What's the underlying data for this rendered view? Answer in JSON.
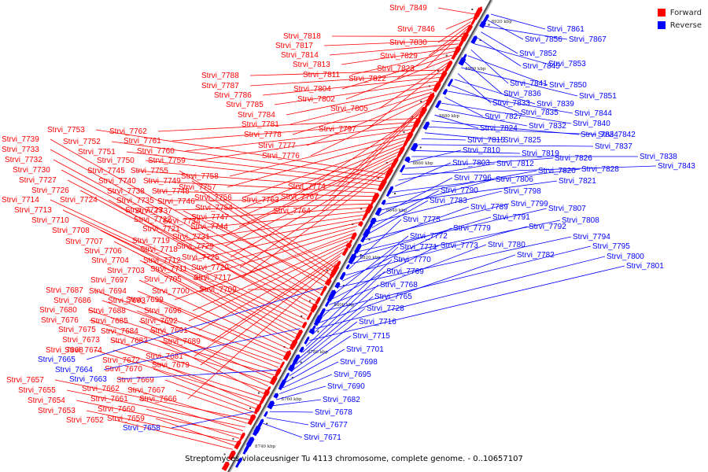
{
  "legend": {
    "forward_label": "Forward",
    "reverse_label": "Reverse",
    "forward_color": "#ff0000",
    "reverse_color": "#0000ff"
  },
  "caption": "Streptomyces violaceusniger Tu 4113 chromosome, complete genome. - 0..10657107",
  "axis_ticks": [
    "8920 kbp",
    "8900 kbp",
    "8880 kbp",
    "8860 kbp",
    "8840 kbp",
    "8820 kbp",
    "8800 kbp",
    "8780 kbp",
    "8760 kbp",
    "8740 kbp"
  ],
  "forward_genes": [
    "Strvi_7849",
    "Strvi_7846",
    "Strvi_7830",
    "Strvi_7829",
    "Strvi_7823",
    "Strvi_7822",
    "Strvi_7818",
    "Strvi_7817",
    "Strvi_7814",
    "Strvi_7813",
    "Strvi_7811",
    "Strvi_7804",
    "Strvi_7802",
    "Strvi_7805",
    "Strvi_7797",
    "Strvi_7788",
    "Strvi_7787",
    "Strvi_7786",
    "Strvi_7785",
    "Strvi_7784",
    "Strvi_7781",
    "Strvi_7778",
    "Strvi_7777",
    "Strvi_7776",
    "Strvi_7774",
    "Strvi_7767",
    "Strvi_7764",
    "Strvi_7763",
    "Strvi_7762",
    "Strvi_7761",
    "Strvi_7760",
    "Strvi_7759",
    "Strvi_7758",
    "Strvi_7757",
    "Strvi_7756",
    "Strvi_7754",
    "Strvi_7747",
    "Strvi_7744",
    "Strvi_7731",
    "Strvi_7729",
    "Strvi_7725",
    "Strvi_7720",
    "Strvi_7717",
    "Strvi_7753",
    "Strvi_7752",
    "Strvi_7751",
    "Strvi_7750",
    "Strvi_7745",
    "Strvi_7740",
    "Strvi_7738",
    "Strvi_7735",
    "Strvi_7723",
    "Strvi_7722",
    "Strvi_7721",
    "Strvi_7719",
    "Strvi_7718",
    "Strvi_7712",
    "Strvi_7711",
    "Strvi_7705",
    "Strvi_7700",
    "Strvi_7699",
    "Strvi_7696",
    "Strvi_7692",
    "Strvi_7691",
    "Strvi_7689",
    "Strvi_7681",
    "Strvi_7679",
    "Strvi_7666",
    "Strvi_7755",
    "Strvi_7749",
    "Strvi_7748",
    "Strvi_7746",
    "Strvi_7737",
    "Strvi_7734",
    "Strvi_7709",
    "Strvi_7739",
    "Strvi_7733",
    "Strvi_7732",
    "Strvi_7730",
    "Strvi_7727",
    "Strvi_7726",
    "Strvi_7724",
    "Strvi_7714",
    "Strvi_7713",
    "Strvi_7710",
    "Strvi_7708",
    "Strvi_7707",
    "Strvi_7706",
    "Strvi_7704",
    "Strvi_7703",
    "Strvi_7697",
    "Strvi_7694",
    "Strvi_7693",
    "Strvi_7687",
    "Strvi_7686",
    "Strvi_7688",
    "Strvi_7680",
    "Strvi_7676",
    "Strvi_7685",
    "Strvi_7675",
    "Strvi_7684",
    "Strvi_7673",
    "Strvi_7683",
    "Strvi_7674",
    "Strvi_7668",
    "Strvi_7672",
    "Strvi_7670",
    "Strvi_7669",
    "Strvi_7667",
    "Strvi_7657",
    "Strvi_7662",
    "Strvi_7655",
    "Strvi_7661",
    "Strvi_7654",
    "Strvi_7660",
    "Strvi_7653",
    "Strvi_7659",
    "Strvi_7652"
  ],
  "reverse_genes": [
    "Strvi_7861",
    "Strvi_7856",
    "Strvi_7867",
    "Strvi_7852",
    "Strvi_7845",
    "Strvi_7853",
    "Strvi_7841",
    "Strvi_7850",
    "Strvi_7836",
    "Strvi_7851",
    "Strvi_7833",
    "Strvi_7839",
    "Strvi_7835",
    "Strvi_7844",
    "Strvi_7827",
    "Strvi_7840",
    "Strvi_7832",
    "Strvi_7824",
    "Strvi_7834",
    "Strvi_7842",
    "Strvi_7825",
    "Strvi_7815",
    "Strvi_7837",
    "Strvi_7819",
    "Strvi_7838",
    "Strvi_7810",
    "Strvi_7826",
    "Strvi_7843",
    "Strvi_7812",
    "Strvi_7803",
    "Strvi_7828",
    "Strvi_7820",
    "Strvi_7821",
    "Strvi_7806",
    "Strvi_7796",
    "Strvi_7798",
    "Strvi_7790",
    "Strvi_7783",
    "Strvi_7799",
    "Strvi_7789",
    "Strvi_7807",
    "Strvi_7791",
    "Strvi_7808",
    "Strvi_7775",
    "Strvi_7792",
    "Strvi_7779",
    "Strvi_7794",
    "Strvi_7772",
    "Strvi_7773",
    "Strvi_7780",
    "Strvi_7795",
    "Strvi_7771",
    "Strvi_7782",
    "Strvi_7800",
    "Strvi_7770",
    "Strvi_7801",
    "Strvi_7769",
    "Strvi_7768",
    "Strvi_7765",
    "Strvi_7728",
    "Strvi_7716",
    "Strvi_7715",
    "Strvi_7701",
    "Strvi_7698",
    "Strvi_7695",
    "Strvi_7690",
    "Strvi_7682",
    "Strvi_7678",
    "Strvi_7677",
    "Strvi_7671",
    "Strvi_7665",
    "Strvi_7664",
    "Strvi_7663",
    "Strvi_7658"
  ]
}
